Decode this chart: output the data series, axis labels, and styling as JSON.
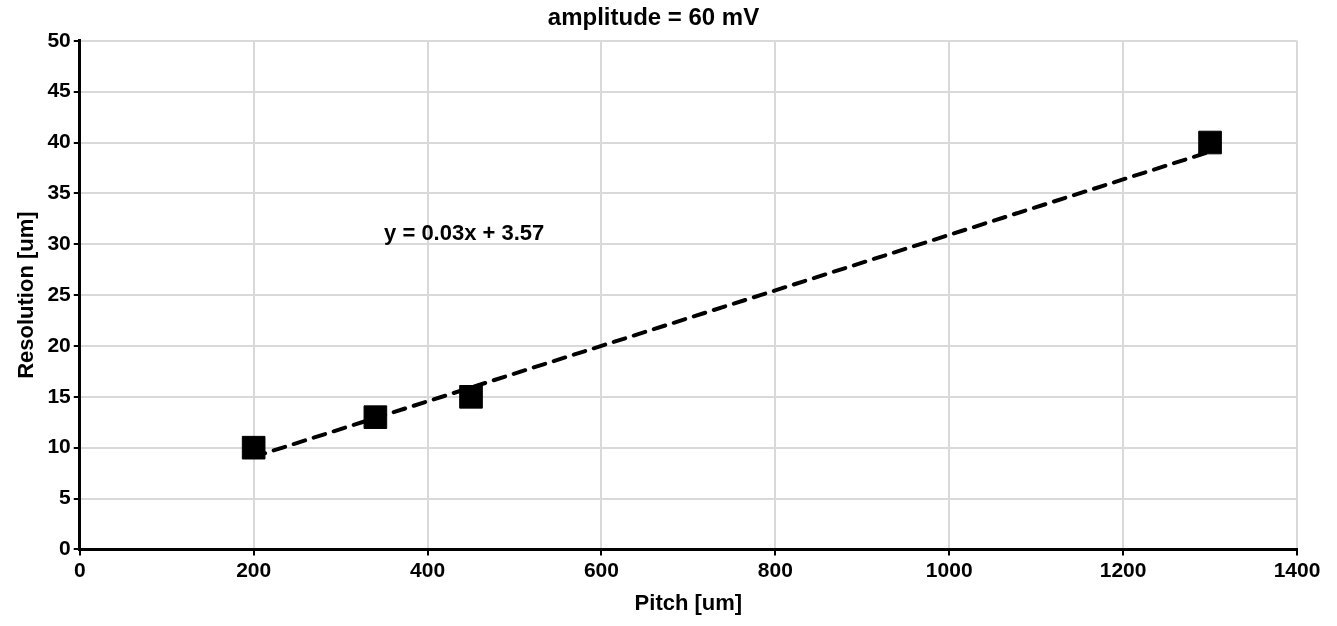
{
  "chart_data": {
    "type": "scatter",
    "title": "amplitude = 60 mV",
    "xlabel": "Pitch [um]",
    "ylabel": "Resolution [um]",
    "xlim": [
      0,
      1400
    ],
    "xticks": [
      0,
      200,
      400,
      600,
      800,
      1000,
      1200,
      1400
    ],
    "ylim": [
      0,
      50
    ],
    "yticks": [
      0,
      5,
      10,
      15,
      20,
      25,
      30,
      35,
      40,
      45,
      50
    ],
    "grid": true,
    "legend": false,
    "marker": "square",
    "series": [
      {
        "color": "#000000",
        "x": [
          200,
          340,
          450,
          1300
        ],
        "values": [
          10,
          13,
          15,
          40
        ]
      },
      {
        "type": "line",
        "color": "#000000",
        "line_style": "dashed",
        "marker": "none",
        "x": [
          200,
          1300
        ],
        "values": [
          9.1,
          39.1
        ]
      }
    ],
    "annotations": [
      "y = 0.03x + 3.57"
    ]
  }
}
